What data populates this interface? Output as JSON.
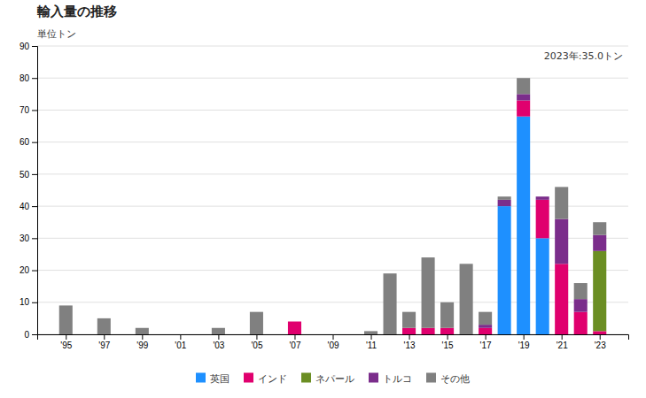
{
  "chart_data": {
    "type": "bar",
    "stacked": true,
    "title": "輸入量の推移",
    "ylabel": "単位トン",
    "annotation": "2023年:35.0トン",
    "x": [
      1995,
      1996,
      1997,
      1998,
      1999,
      2000,
      2001,
      2002,
      2003,
      2004,
      2005,
      2006,
      2007,
      2008,
      2009,
      2010,
      2011,
      2012,
      2013,
      2014,
      2015,
      2016,
      2017,
      2018,
      2019,
      2020,
      2021,
      2022,
      2023
    ],
    "series": [
      {
        "name": "英国",
        "color": "#1E90FF",
        "values": [
          0,
          0,
          0,
          0,
          0,
          0,
          0,
          0,
          0,
          0,
          0,
          0,
          0,
          0,
          0,
          0,
          0,
          0,
          0,
          0,
          0,
          0,
          0,
          40,
          68,
          30,
          0,
          0,
          0
        ]
      },
      {
        "name": "インド",
        "color": "#E0006E",
        "values": [
          0,
          0,
          0,
          0,
          0,
          0,
          0,
          0,
          0,
          0,
          0,
          0,
          4,
          0,
          0,
          0,
          0,
          0,
          2,
          2,
          2,
          0,
          2,
          0,
          5,
          12,
          22,
          7,
          1
        ]
      },
      {
        "name": "ネパール",
        "color": "#6B8E23",
        "values": [
          0,
          0,
          0,
          0,
          0,
          0,
          0,
          0,
          0,
          0,
          0,
          0,
          0,
          0,
          0,
          0,
          0,
          0,
          0,
          0,
          0,
          0,
          0,
          0,
          0,
          0,
          0,
          0,
          25
        ]
      },
      {
        "name": "トルコ",
        "color": "#7B2D8B",
        "values": [
          0,
          0,
          0,
          0,
          0,
          0,
          0,
          0,
          0,
          0,
          0,
          0,
          0,
          0,
          0,
          0,
          0,
          0,
          0,
          0,
          0,
          0,
          1,
          2,
          2,
          1,
          14,
          4,
          5
        ]
      },
      {
        "name": "その他",
        "color": "#808080",
        "values": [
          9,
          0,
          5,
          0,
          2,
          0,
          0,
          0,
          2,
          0,
          7,
          0,
          0,
          0,
          0,
          0,
          1,
          19,
          5,
          22,
          8,
          22,
          4,
          1,
          5,
          0,
          10,
          5,
          4
        ]
      }
    ],
    "xlim": [
      1993.5,
      2024.5
    ],
    "xticks": [
      {
        "value": 1995,
        "label": "'95"
      },
      {
        "value": 1997,
        "label": "'97"
      },
      {
        "value": 1999,
        "label": "'99"
      },
      {
        "value": 2001,
        "label": "'01"
      },
      {
        "value": 2003,
        "label": "'03"
      },
      {
        "value": 2005,
        "label": "'05"
      },
      {
        "value": 2007,
        "label": "'07"
      },
      {
        "value": 2009,
        "label": "'09"
      },
      {
        "value": 2011,
        "label": "'11"
      },
      {
        "value": 2013,
        "label": "'13"
      },
      {
        "value": 2015,
        "label": "'15"
      },
      {
        "value": 2017,
        "label": "'17"
      },
      {
        "value": 2019,
        "label": "'19"
      },
      {
        "value": 2021,
        "label": "'21"
      },
      {
        "value": 2023,
        "label": "'23"
      }
    ],
    "ylim": [
      0,
      90
    ],
    "yticks": [
      0,
      10,
      20,
      30,
      40,
      50,
      60,
      70,
      80,
      90
    ],
    "grid": true,
    "legend": "bottom"
  }
}
